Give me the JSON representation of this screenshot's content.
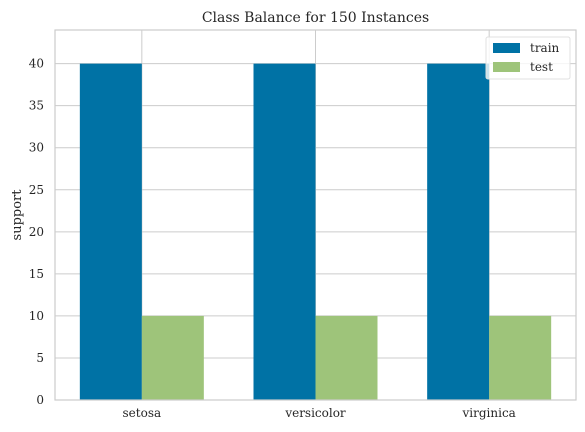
{
  "chart_data": {
    "type": "bar",
    "title": "Class Balance for 150 Instances",
    "xlabel": "",
    "ylabel": "support",
    "categories": [
      "setosa",
      "versicolor",
      "virginica"
    ],
    "series": [
      {
        "name": "train",
        "values": [
          40,
          40,
          40
        ],
        "color": "#0072a5"
      },
      {
        "name": "test",
        "values": [
          10,
          10,
          10
        ],
        "color": "#9ec47a"
      }
    ],
    "ylim": [
      0,
      44
    ],
    "yticks": [
      0,
      5,
      10,
      15,
      20,
      25,
      30,
      35,
      40
    ],
    "grid": true,
    "legend_position": "top-right"
  }
}
